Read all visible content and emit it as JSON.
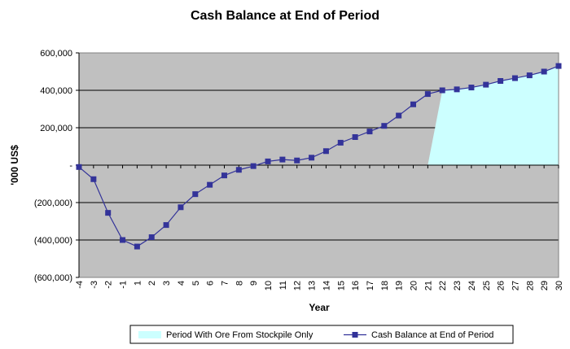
{
  "chart_data": {
    "type": "line",
    "title": "Cash Balance at End of Period",
    "xlabel": "Year",
    "ylabel": "'000 US$",
    "ylim": [
      -600000,
      600000
    ],
    "yticks": [
      600000,
      400000,
      200000,
      0,
      -200000,
      -400000,
      -600000
    ],
    "ytick_labels": [
      "600,000",
      "400,000",
      "200,000",
      "-",
      "(200,000)",
      "(400,000)",
      "(600,000)"
    ],
    "grid": true,
    "legend_position": "bottom",
    "x": [
      -4,
      -3,
      -2,
      -1,
      1,
      2,
      3,
      4,
      5,
      6,
      7,
      8,
      9,
      10,
      11,
      12,
      13,
      14,
      15,
      16,
      17,
      18,
      19,
      20,
      21,
      22,
      23,
      24,
      25,
      26,
      27,
      28,
      29,
      30
    ],
    "x_labels": [
      "-4",
      "-3",
      "-2",
      "-1",
      "1",
      "2",
      "3",
      "4",
      "5",
      "6",
      "7",
      "8",
      "9",
      "10",
      "11",
      "12",
      "13",
      "14",
      "15",
      "16",
      "17",
      "18",
      "19",
      "20",
      "21",
      "22",
      "23",
      "24",
      "25",
      "26",
      "27",
      "28",
      "29",
      "30"
    ],
    "series": [
      {
        "name": "Cash Balance at End of Period",
        "type": "line",
        "color": "#333399",
        "values": [
          -10000,
          -75000,
          -255000,
          -400000,
          -435000,
          -385000,
          -320000,
          -225000,
          -155000,
          -105000,
          -55000,
          -25000,
          -5000,
          20000,
          30000,
          25000,
          40000,
          75000,
          120000,
          150000,
          180000,
          210000,
          265000,
          325000,
          380000,
          400000,
          405000,
          415000,
          430000,
          450000,
          465000,
          480000,
          500000,
          530000
        ]
      },
      {
        "name": "Period With Ore From Stockpile Only",
        "type": "area",
        "color": "#ccffff",
        "x_start": 21,
        "x_end": 30
      }
    ],
    "colors": {
      "plot_background": "#c0c0c0",
      "gridline": "#000000"
    }
  }
}
